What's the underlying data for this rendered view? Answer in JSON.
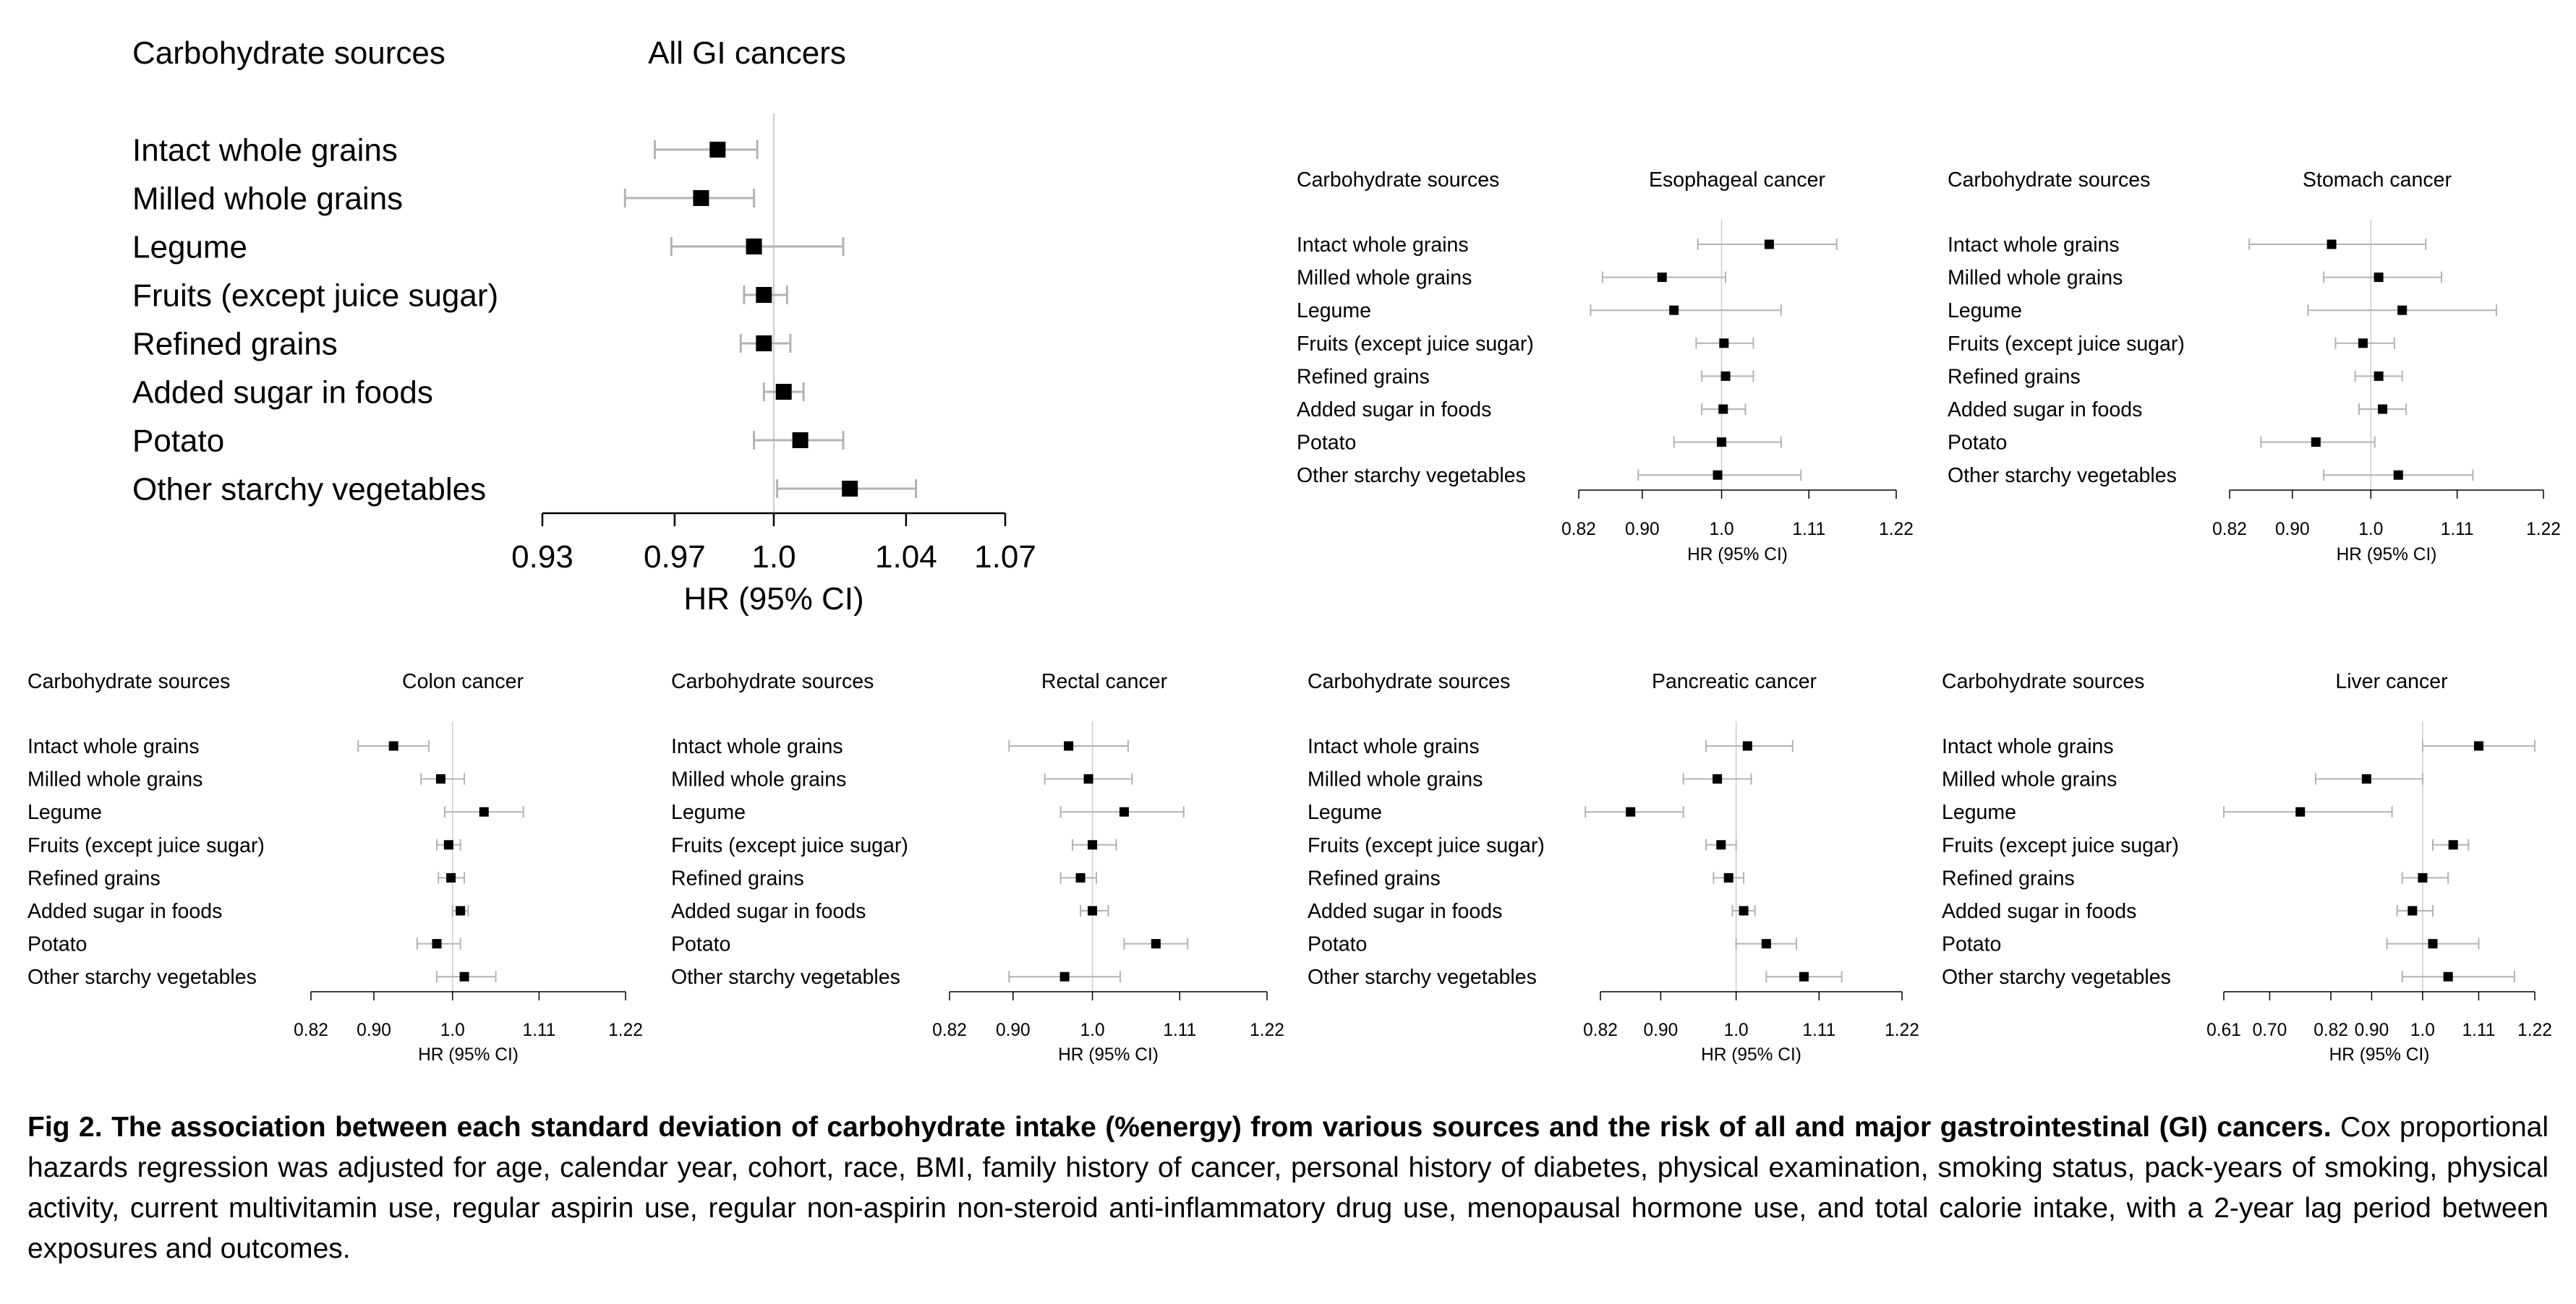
{
  "charts_common": {
    "row_header": "Carbohydrate sources",
    "xlabel": "HR (95% CI)",
    "row_labels": [
      "Intact whole grains",
      "Milled whole grains",
      "Legume",
      "Fruits (except juice sugar)",
      "Refined grains",
      "Added sugar in foods",
      "Potato",
      "Other starchy vegetables"
    ]
  },
  "chart_data": [
    {
      "type": "forest",
      "title": "All GI cancers",
      "xlabel": "HR (95% CI)",
      "xlim": [
        0.93,
        1.07
      ],
      "reference_line": 1.0,
      "ticks": [
        0.93,
        0.97,
        1.0,
        1.04,
        1.07
      ],
      "tick_labels": [
        "0.93",
        "0.97",
        "1.0",
        "1.04",
        "1.07"
      ],
      "categories": [
        "Intact whole grains",
        "Milled whole grains",
        "Legume",
        "Fruits (except juice sugar)",
        "Refined grains",
        "Added sugar in foods",
        "Potato",
        "Other starchy vegetables"
      ],
      "hr": [
        0.983,
        0.978,
        0.994,
        0.997,
        0.997,
        1.003,
        1.008,
        1.023
      ],
      "lower": [
        0.964,
        0.955,
        0.969,
        0.991,
        0.99,
        0.997,
        0.994,
        1.001
      ],
      "upper": [
        0.995,
        0.994,
        1.021,
        1.004,
        1.005,
        1.009,
        1.021,
        1.043
      ]
    },
    {
      "type": "forest",
      "title": "Esophageal cancer",
      "xlabel": "HR (95% CI)",
      "xlim": [
        0.82,
        1.22
      ],
      "reference_line": 1.0,
      "ticks": [
        0.82,
        0.9,
        1.0,
        1.11,
        1.22
      ],
      "tick_labels": [
        "0.82",
        "0.90",
        "1.0",
        "1.11",
        "1.22"
      ],
      "categories": [
        "Intact whole grains",
        "Milled whole grains",
        "Legume",
        "Fruits (except juice sugar)",
        "Refined grains",
        "Added sugar in foods",
        "Potato",
        "Other starchy vegetables"
      ],
      "hr": [
        1.06,
        0.925,
        0.94,
        1.003,
        1.005,
        1.002,
        1.0,
        0.995
      ],
      "lower": [
        0.97,
        0.85,
        0.835,
        0.968,
        0.975,
        0.975,
        0.94,
        0.895
      ],
      "upper": [
        1.145,
        1.005,
        1.075,
        1.04,
        1.04,
        1.03,
        1.075,
        1.1
      ]
    },
    {
      "type": "forest",
      "title": "Stomach cancer",
      "xlabel": "HR (95% CI)",
      "xlim": [
        0.82,
        1.22
      ],
      "reference_line": 1.0,
      "ticks": [
        0.82,
        0.9,
        1.0,
        1.11,
        1.22
      ],
      "tick_labels": [
        "0.82",
        "0.90",
        "1.0",
        "1.11",
        "1.22"
      ],
      "categories": [
        "Intact whole grains",
        "Milled whole grains",
        "Legume",
        "Fruits (except juice sugar)",
        "Refined grains",
        "Added sugar in foods",
        "Potato",
        "Other starchy vegetables"
      ],
      "hr": [
        0.95,
        1.01,
        1.04,
        0.99,
        1.01,
        1.015,
        0.93,
        1.035
      ],
      "lower": [
        0.845,
        0.94,
        0.92,
        0.955,
        0.98,
        0.985,
        0.86,
        0.94
      ],
      "upper": [
        1.07,
        1.09,
        1.16,
        1.03,
        1.04,
        1.045,
        1.005,
        1.13
      ]
    },
    {
      "type": "forest",
      "title": "Colon cancer",
      "xlabel": "HR (95% CI)",
      "xlim": [
        0.82,
        1.22
      ],
      "reference_line": 1.0,
      "ticks": [
        0.82,
        0.9,
        1.0,
        1.11,
        1.22
      ],
      "tick_labels": [
        "0.82",
        "0.90",
        "1.0",
        "1.11",
        "1.22"
      ],
      "categories": [
        "Intact whole grains",
        "Milled whole grains",
        "Legume",
        "Fruits (except juice sugar)",
        "Refined grains",
        "Added sugar in foods",
        "Potato",
        "Other starchy vegetables"
      ],
      "hr": [
        0.925,
        0.985,
        1.04,
        0.995,
        0.998,
        1.01,
        0.98,
        1.015
      ],
      "lower": [
        0.88,
        0.96,
        0.99,
        0.98,
        0.982,
        1.0,
        0.955,
        0.98
      ],
      "upper": [
        0.97,
        1.015,
        1.09,
        1.01,
        1.015,
        1.02,
        1.01,
        1.055
      ]
    },
    {
      "type": "forest",
      "title": "Rectal cancer",
      "xlabel": "HR (95% CI)",
      "xlim": [
        0.82,
        1.22
      ],
      "reference_line": 1.0,
      "ticks": [
        0.82,
        0.9,
        1.0,
        1.11,
        1.22
      ],
      "tick_labels": [
        "0.82",
        "0.90",
        "1.0",
        "1.11",
        "1.22"
      ],
      "categories": [
        "Intact whole grains",
        "Milled whole grains",
        "Legume",
        "Fruits (except juice sugar)",
        "Refined grains",
        "Added sugar in foods",
        "Potato",
        "Other starchy vegetables"
      ],
      "hr": [
        0.97,
        0.995,
        1.04,
        1.0,
        0.985,
        1.0,
        1.08,
        0.965
      ],
      "lower": [
        0.895,
        0.94,
        0.96,
        0.975,
        0.96,
        0.985,
        1.04,
        0.895
      ],
      "upper": [
        1.045,
        1.05,
        1.115,
        1.03,
        1.005,
        1.02,
        1.12,
        1.035
      ]
    },
    {
      "type": "forest",
      "title": "Pancreatic cancer",
      "xlabel": "HR (95% CI)",
      "xlim": [
        0.82,
        1.22
      ],
      "reference_line": 1.0,
      "ticks": [
        0.82,
        0.9,
        1.0,
        1.11,
        1.22
      ],
      "tick_labels": [
        "0.82",
        "0.90",
        "1.0",
        "1.11",
        "1.22"
      ],
      "categories": [
        "Intact whole grains",
        "Milled whole grains",
        "Legume",
        "Fruits (except juice sugar)",
        "Refined grains",
        "Added sugar in foods",
        "Potato",
        "Other starchy vegetables"
      ],
      "hr": [
        1.015,
        0.975,
        0.86,
        0.98,
        0.99,
        1.01,
        1.04,
        1.09
      ],
      "lower": [
        0.96,
        0.93,
        0.8,
        0.96,
        0.97,
        0.995,
        1.0,
        1.04
      ],
      "upper": [
        1.075,
        1.02,
        0.93,
        1.0,
        1.01,
        1.025,
        1.08,
        1.14
      ]
    },
    {
      "type": "forest",
      "title": "Liver cancer",
      "xlabel": "HR (95% CI)",
      "xlim": [
        0.61,
        1.22
      ],
      "reference_line": 1.0,
      "ticks": [
        0.61,
        0.7,
        0.82,
        0.9,
        1.0,
        1.11,
        1.22
      ],
      "tick_labels": [
        "0.61",
        "0.70",
        "0.82",
        "0.90",
        "1.0",
        "1.11",
        "1.22"
      ],
      "categories": [
        "Intact whole grains",
        "Milled whole grains",
        "Legume",
        "Fruits (except juice sugar)",
        "Refined grains",
        "Added sugar in foods",
        "Potato",
        "Other starchy vegetables"
      ],
      "hr": [
        1.11,
        0.89,
        0.76,
        1.06,
        1.0,
        0.98,
        1.02,
        1.05
      ],
      "lower": [
        1.0,
        0.79,
        0.61,
        1.02,
        0.96,
        0.95,
        0.93,
        0.96
      ],
      "upper": [
        1.22,
        1.0,
        0.94,
        1.09,
        1.05,
        1.02,
        1.11,
        1.18
      ]
    }
  ],
  "caption": {
    "bold": "Fig 2. The association between each standard deviation of carbohydrate intake (%energy) from various sources and the risk of all and major gastrointestinal (GI) cancers.",
    "text": " Cox proportional hazards regression was adjusted for age, calendar year, cohort, race, BMI, family history of cancer, personal history of diabetes, physical examination, smoking status, pack-years of smoking, physical activity, current multivitamin use, regular aspirin use, regular non-aspirin non-steroid anti-inflammatory drug use, menopausal hormone use, and total calorie intake, with a 2-year lag period between exposures and outcomes."
  },
  "colors": {
    "ci_line": "#b3b3b3",
    "reference_line": "#cccccc",
    "marker": "#000000",
    "axis": "#000000"
  }
}
